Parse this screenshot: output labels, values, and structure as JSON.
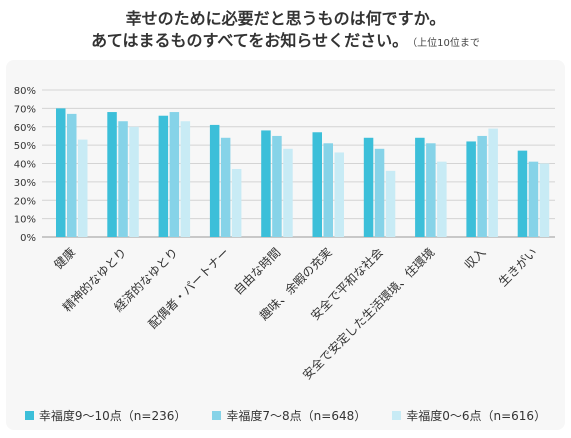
{
  "title": {
    "line1": "幸せのために必要だと思うものは何ですか。",
    "line2": "あてはまるものすべてをお知らせください。",
    "note": "（上位10位まで"
  },
  "chart_data": {
    "type": "bar",
    "categories": [
      "健康",
      "精神的なゆとり",
      "経済的なゆとり",
      "配偶者・パートナー",
      "自由な時間",
      "趣味、余暇の充実",
      "安全で平和な社会",
      "安全で安定した生活環境、住環境",
      "収入",
      "生きがい"
    ],
    "series": [
      {
        "name": "幸福度9〜10点（n=236）",
        "color": "#3cbfd9",
        "values": [
          70,
          68,
          66,
          61,
          58,
          57,
          54,
          54,
          52,
          47
        ]
      },
      {
        "name": "幸福度7〜8点（n=648）",
        "color": "#86d3e8",
        "values": [
          67,
          63,
          68,
          54,
          55,
          51,
          48,
          51,
          55,
          41
        ]
      },
      {
        "name": "幸福度0〜6点（n=616）",
        "color": "#c8ebf5",
        "values": [
          53,
          60,
          63,
          37,
          48,
          46,
          36,
          41,
          59,
          40
        ]
      }
    ],
    "yticks": [
      "0%",
      "10%",
      "20%",
      "30%",
      "40%",
      "50%",
      "60%",
      "70%",
      "80%"
    ],
    "ylim": [
      0,
      80
    ],
    "grid": true,
    "legend_position": "bottom"
  }
}
